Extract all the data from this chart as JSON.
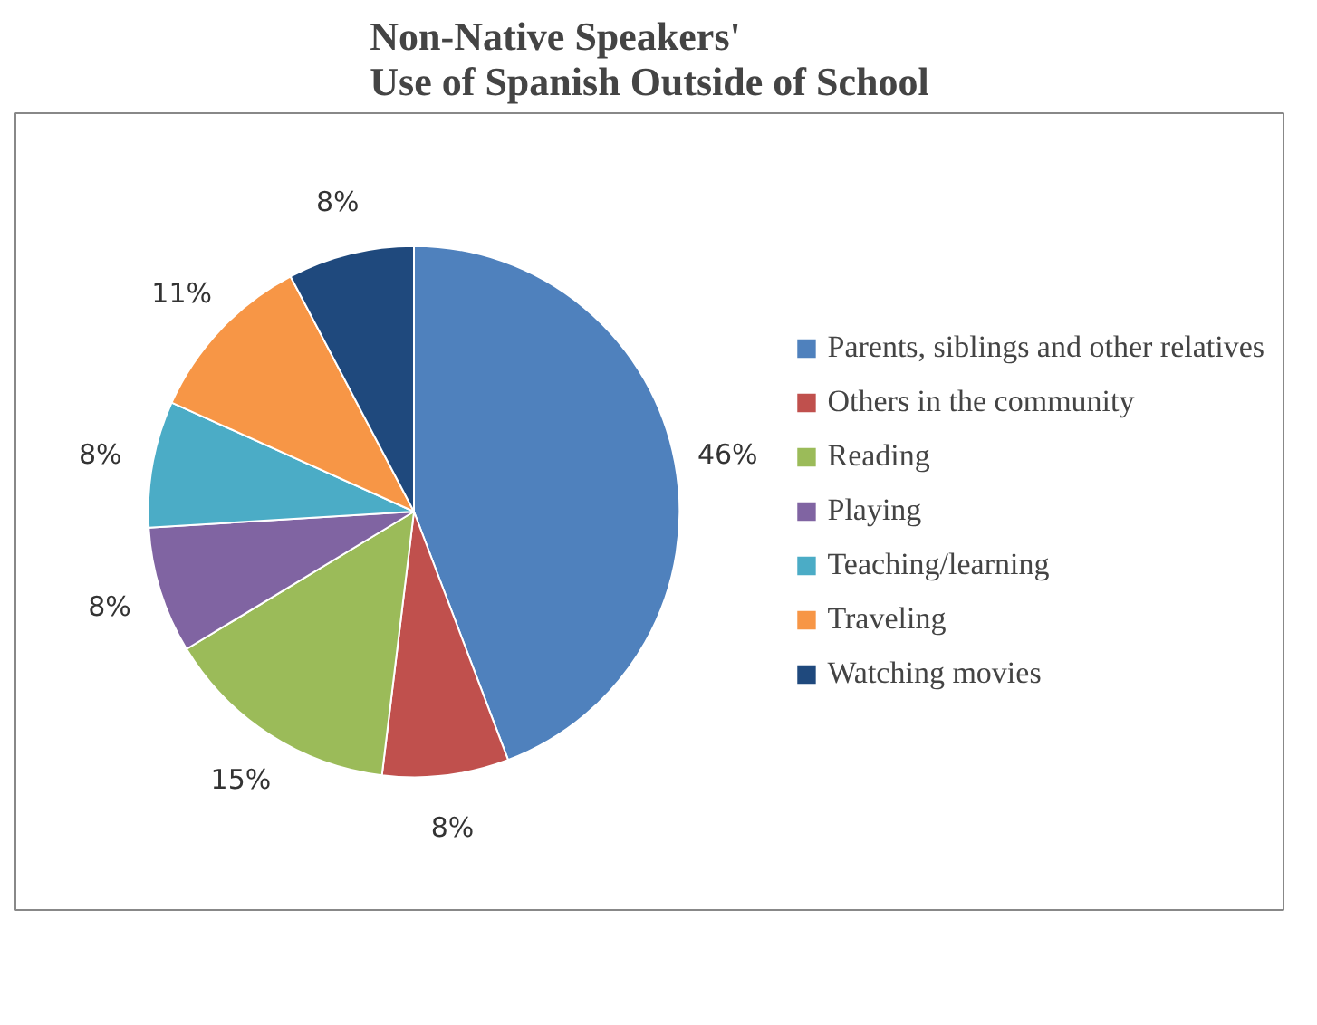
{
  "chart_data": {
    "type": "pie",
    "title": "Non-Native Speakers'\nUse of Spanish Outside of School",
    "categories": [
      "Parents, siblings and other relatives",
      "Others in the community",
      "Reading",
      "Playing",
      "Teaching/learning",
      "Traveling",
      "Watching movies"
    ],
    "values": [
      46,
      8,
      15,
      8,
      8,
      11,
      8
    ],
    "value_labels": [
      "46%",
      "8%",
      "15%",
      "8%",
      "8%",
      "11%",
      "8%"
    ],
    "colors": [
      "#4f81bd",
      "#c0504d",
      "#9bbb59",
      "#8064a2",
      "#4bacc6",
      "#f79646",
      "#1f497d"
    ],
    "legend": "right"
  }
}
